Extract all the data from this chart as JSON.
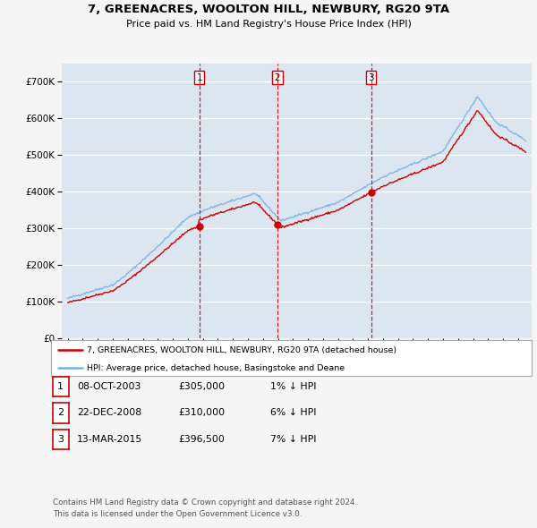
{
  "title": "7, GREENACRES, WOOLTON HILL, NEWBURY, RG20 9TA",
  "subtitle": "Price paid vs. HM Land Registry's House Price Index (HPI)",
  "hpi_label": "HPI: Average price, detached house, Basingstoke and Deane",
  "property_label": "7, GREENACRES, WOOLTON HILL, NEWBURY, RG20 9TA (detached house)",
  "footnote1": "Contains HM Land Registry data © Crown copyright and database right 2024.",
  "footnote2": "This data is licensed under the Open Government Licence v3.0.",
  "transactions": [
    {
      "num": 1,
      "date": "08-OCT-2003",
      "price": 305000,
      "rel": "1% ↓ HPI",
      "year": 2003.77
    },
    {
      "num": 2,
      "date": "22-DEC-2008",
      "price": 310000,
      "rel": "6% ↓ HPI",
      "year": 2008.97
    },
    {
      "num": 3,
      "date": "13-MAR-2015",
      "price": 396500,
      "rel": "7% ↓ HPI",
      "year": 2015.2
    }
  ],
  "ylim": [
    0,
    750000
  ],
  "yticks": [
    0,
    100000,
    200000,
    300000,
    400000,
    500000,
    600000,
    700000
  ],
  "bg_color": "#f0f0f0",
  "plot_bg": "#dce6f0",
  "hpi_color": "#7ab0e8",
  "price_color": "#cc0000",
  "grid_color": "#ffffff",
  "transaction_line_color": "#cc0000",
  "xstart": 1995,
  "xend": 2026
}
